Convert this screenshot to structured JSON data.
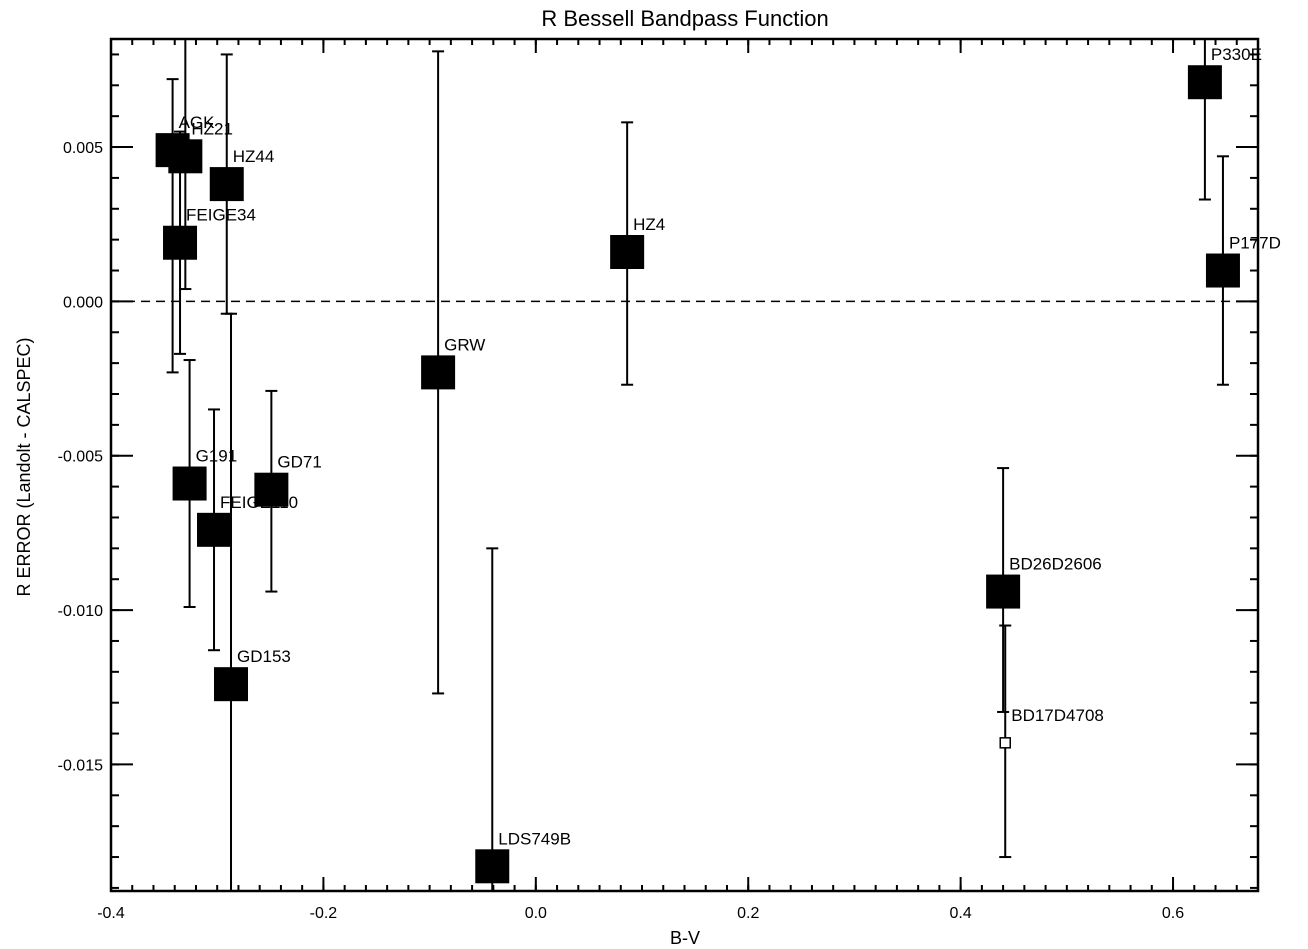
{
  "chart_data": {
    "type": "scatter",
    "title": "R Bessell Bandpass Function",
    "xlabel": "B-V",
    "ylabel": "R ERROR (Landolt - CALSPEC)",
    "xlim": [
      -0.4,
      0.68
    ],
    "ylim": [
      -0.0191,
      0.0085
    ],
    "xticks": [
      -0.4,
      -0.2,
      0.0,
      0.2,
      0.4,
      0.6
    ],
    "xtick_labels": [
      "-0.4",
      "-0.2",
      "0.0",
      "0.2",
      "0.4",
      "0.6"
    ],
    "yticks": [
      -0.015,
      -0.01,
      -0.005,
      0.0,
      0.005
    ],
    "ytick_labels": [
      "-0.015",
      "-0.010",
      "-0.005",
      "0.000",
      "0.005"
    ],
    "reference_line": {
      "y": 0.0,
      "style": "dashed"
    },
    "grid": false,
    "points": [
      {
        "name": "AGK",
        "x": -0.342,
        "y": 0.0049,
        "err_low": -0.0023,
        "err_high": 0.0072,
        "marker": "filled-square"
      },
      {
        "name": "HZ21",
        "x": -0.33,
        "y": 0.0047,
        "err_low": 0.0004,
        "err_high": 0.0085,
        "marker": "filled-square"
      },
      {
        "name": "HZ44",
        "x": -0.291,
        "y": 0.0038,
        "err_low": -0.0004,
        "err_high": 0.008,
        "marker": "filled-square"
      },
      {
        "name": "FEIGE34",
        "x": -0.335,
        "y": 0.0019,
        "err_low": -0.0017,
        "err_high": 0.0055,
        "marker": "filled-square"
      },
      {
        "name": "HZ4",
        "x": 0.086,
        "y": 0.0016,
        "err_low": -0.0027,
        "err_high": 0.0058,
        "marker": "filled-square"
      },
      {
        "name": "P330E",
        "x": 0.63,
        "y": 0.0071,
        "err_low": 0.0033,
        "err_high": 0.0085,
        "marker": "filled-square"
      },
      {
        "name": "P177D",
        "x": 0.647,
        "y": 0.001,
        "err_low": -0.0027,
        "err_high": 0.0047,
        "marker": "filled-square"
      },
      {
        "name": "GRW",
        "x": -0.092,
        "y": -0.0023,
        "err_low": -0.0127,
        "err_high": 0.0081,
        "marker": "filled-square"
      },
      {
        "name": "G191",
        "x": -0.326,
        "y": -0.0059,
        "err_low": -0.0099,
        "err_high": -0.0019,
        "marker": "filled-square"
      },
      {
        "name": "GD71",
        "x": -0.249,
        "y": -0.0061,
        "err_low": -0.0094,
        "err_high": -0.0029,
        "marker": "filled-square"
      },
      {
        "name": "FEIGE110",
        "x": -0.303,
        "y": -0.0074,
        "err_low": -0.0113,
        "err_high": -0.0035,
        "marker": "filled-square"
      },
      {
        "name": "GD153",
        "x": -0.287,
        "y": -0.0124,
        "err_low": -0.0191,
        "err_high": -0.0004,
        "marker": "filled-square"
      },
      {
        "name": "BD26D2606",
        "x": 0.44,
        "y": -0.0094,
        "err_low": -0.0133,
        "err_high": -0.0054,
        "marker": "filled-square"
      },
      {
        "name": "BD17D4708",
        "x": 0.442,
        "y": -0.0143,
        "err_low": -0.018,
        "err_high": -0.0105,
        "marker": "open-square"
      },
      {
        "name": "LDS749B",
        "x": -0.041,
        "y": -0.0183,
        "err_low": -0.0191,
        "err_high": -0.008,
        "marker": "filled-square"
      }
    ]
  }
}
